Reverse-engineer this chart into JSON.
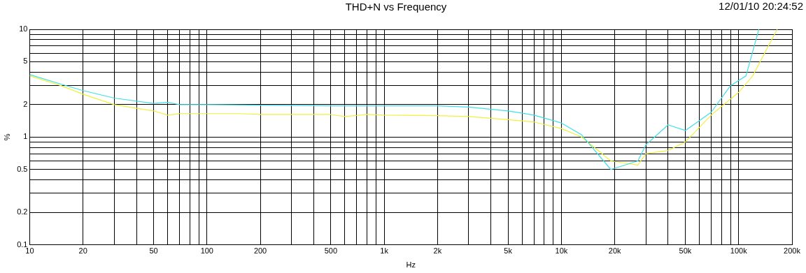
{
  "chart_data": {
    "type": "line",
    "title": "THD+N vs Frequency",
    "annotations": [
      "12/01/10 20:24:52"
    ],
    "xlabel": "Hz",
    "ylabel": "%",
    "log": "xy",
    "grid": true,
    "legend": false,
    "marker": "none",
    "line_style": "solid",
    "xlim": [
      10,
      200000
    ],
    "ylim": [
      0.1,
      10
    ],
    "xticks": [
      10,
      {
        "value": 20,
        "label": "20"
      },
      {
        "value": 30,
        "label": null
      },
      {
        "value": 40,
        "label": null
      },
      50,
      {
        "value": 60,
        "label": null
      },
      {
        "value": 70,
        "label": null
      },
      {
        "value": 80,
        "label": null
      },
      {
        "value": 90,
        "label": null
      },
      100,
      200,
      {
        "value": 300,
        "label": null
      },
      {
        "value": 400,
        "label": null
      },
      500,
      {
        "value": 600,
        "label": null
      },
      {
        "value": 700,
        "label": null
      },
      {
        "value": 800,
        "label": null
      },
      {
        "value": 900,
        "label": null
      },
      {
        "value": 1000,
        "label": "1k"
      },
      {
        "value": 2000,
        "label": "2k"
      },
      {
        "value": 3000,
        "label": null
      },
      {
        "value": 4000,
        "label": null
      },
      {
        "value": 5000,
        "label": "5k"
      },
      {
        "value": 6000,
        "label": null
      },
      {
        "value": 7000,
        "label": null
      },
      {
        "value": 8000,
        "label": null
      },
      {
        "value": 9000,
        "label": null
      },
      {
        "value": 10000,
        "label": "10k"
      },
      {
        "value": 20000,
        "label": "20k"
      },
      {
        "value": 30000,
        "label": null
      },
      {
        "value": 40000,
        "label": null
      },
      {
        "value": 50000,
        "label": "50k"
      },
      {
        "value": 60000,
        "label": null
      },
      {
        "value": 70000,
        "label": null
      },
      {
        "value": 80000,
        "label": null
      },
      {
        "value": 90000,
        "label": null
      },
      {
        "value": 100000,
        "label": "100k"
      },
      {
        "value": 200000,
        "label": "200k"
      }
    ],
    "yticks": [
      0.1,
      0.2,
      {
        "value": 0.3,
        "label": null
      },
      {
        "value": 0.4,
        "label": null
      },
      0.5,
      {
        "value": 0.6,
        "label": null
      },
      {
        "value": 0.7,
        "label": null
      },
      {
        "value": 0.8,
        "label": null
      },
      {
        "value": 0.9,
        "label": null
      },
      1,
      2,
      {
        "value": 3,
        "label": null
      },
      {
        "value": 4,
        "label": null
      },
      5,
      {
        "value": 6,
        "label": null
      },
      {
        "value": 7,
        "label": null
      },
      {
        "value": 8,
        "label": null
      },
      {
        "value": 9,
        "label": null
      },
      10
    ],
    "series": [
      {
        "color": "#40e0e8",
        "x": [
          10,
          15,
          20,
          30,
          50,
          60,
          70,
          100,
          500,
          1000,
          2000,
          3000,
          5000,
          7000,
          10000,
          13000,
          19000,
          27000,
          30000,
          40000,
          50000,
          70000,
          90000,
          110000,
          130000
        ],
        "values": [
          3.8,
          3.1,
          2.7,
          2.3,
          2.05,
          2.1,
          2.0,
          2.0,
          1.95,
          1.95,
          1.95,
          1.9,
          1.75,
          1.6,
          1.35,
          1.05,
          0.5,
          0.6,
          0.85,
          1.3,
          1.15,
          1.7,
          3.0,
          3.7,
          10
        ]
      },
      {
        "color": "#f0f040",
        "x": [
          10,
          15,
          20,
          30,
          50,
          60,
          70,
          100,
          150,
          200,
          500,
          600,
          800,
          1000,
          2000,
          3000,
          5000,
          7000,
          10000,
          13000,
          19000,
          27000,
          30000,
          40000,
          50000,
          70000,
          100000,
          120000,
          165000
        ],
        "values": [
          3.7,
          3.0,
          2.5,
          2.0,
          1.75,
          1.6,
          1.65,
          1.65,
          1.65,
          1.62,
          1.62,
          1.55,
          1.62,
          1.6,
          1.58,
          1.55,
          1.45,
          1.38,
          1.2,
          1.0,
          0.6,
          0.55,
          0.7,
          0.75,
          0.9,
          1.6,
          2.6,
          3.7,
          10
        ]
      }
    ]
  }
}
